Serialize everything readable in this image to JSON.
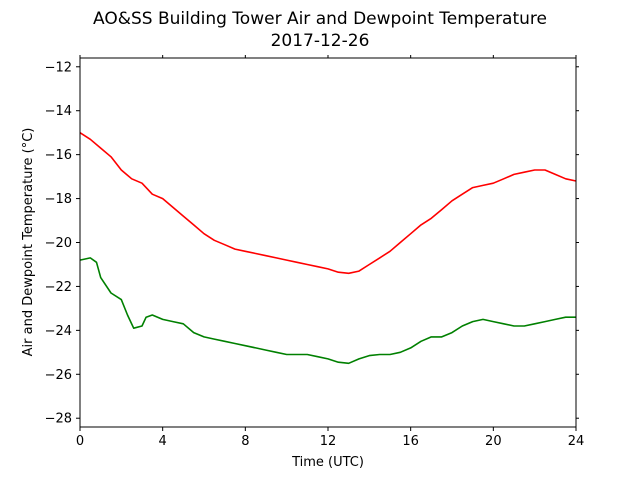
{
  "chart_data": {
    "type": "line",
    "title": "AO&SS Building Tower Air and Dewpoint Temperature",
    "subtitle": "2017-12-26",
    "xlabel": "Time (UTC)",
    "ylabel": "Air and Dewpoint Temperature (°C)",
    "xlim": [
      0,
      24
    ],
    "ylim": [
      -28.4,
      -11.6
    ],
    "xticks": [
      "0",
      "4",
      "8",
      "12",
      "16",
      "20",
      "24"
    ],
    "yticks": [
      "-28",
      "-26",
      "-24",
      "-22",
      "-20",
      "-18",
      "-16",
      "-14",
      "-12"
    ],
    "grid": false,
    "series": [
      {
        "color": "#ff0000",
        "x": [
          0,
          0.5,
          1,
          1.5,
          2,
          2.5,
          3,
          3.5,
          4,
          4.5,
          5,
          5.5,
          6,
          6.5,
          7,
          7.5,
          8,
          8.5,
          9,
          9.5,
          10,
          10.5,
          11,
          11.5,
          12,
          12.5,
          13,
          13.5,
          14,
          14.5,
          15,
          15.5,
          16,
          16.5,
          17,
          17.5,
          18,
          18.5,
          19,
          19.5,
          20,
          20.5,
          21,
          21.5,
          22,
          22.5,
          23,
          23.5,
          24
        ],
        "y": [
          -15.0,
          -15.3,
          -15.7,
          -16.1,
          -16.7,
          -17.1,
          -17.3,
          -17.8,
          -18.0,
          -18.4,
          -18.8,
          -19.2,
          -19.6,
          -19.9,
          -20.1,
          -20.3,
          -20.4,
          -20.5,
          -20.6,
          -20.7,
          -20.8,
          -20.9,
          -21.0,
          -21.1,
          -21.2,
          -21.35,
          -21.4,
          -21.3,
          -21.0,
          -20.7,
          -20.4,
          -20.0,
          -19.6,
          -19.2,
          -18.9,
          -18.5,
          -18.1,
          -17.8,
          -17.5,
          -17.4,
          -17.3,
          -17.1,
          -16.9,
          -16.8,
          -16.7,
          -16.7,
          -16.9,
          -17.1,
          -17.2
        ]
      },
      {
        "color": "#008000",
        "x": [
          0,
          0.5,
          0.8,
          1,
          1.5,
          2,
          2.3,
          2.6,
          3,
          3.2,
          3.5,
          4,
          4.5,
          5,
          5.5,
          6,
          6.5,
          7,
          7.5,
          8,
          8.5,
          9,
          9.5,
          10,
          10.5,
          11,
          11.5,
          12,
          12.5,
          13,
          13.5,
          14,
          14.5,
          15,
          15.5,
          16,
          16.5,
          17,
          17.5,
          18,
          18.5,
          19,
          19.5,
          20,
          20.5,
          21,
          21.5,
          22,
          22.5,
          23,
          23.5,
          24
        ],
        "y": [
          -20.8,
          -20.7,
          -20.9,
          -21.6,
          -22.3,
          -22.6,
          -23.3,
          -23.9,
          -23.8,
          -23.4,
          -23.3,
          -23.5,
          -23.6,
          -23.7,
          -24.1,
          -24.3,
          -24.4,
          -24.5,
          -24.6,
          -24.7,
          -24.8,
          -24.9,
          -25.0,
          -25.1,
          -25.1,
          -25.1,
          -25.2,
          -25.3,
          -25.45,
          -25.5,
          -25.3,
          -25.15,
          -25.1,
          -25.1,
          -25.0,
          -24.8,
          -24.5,
          -24.3,
          -24.3,
          -24.1,
          -23.8,
          -23.6,
          -23.5,
          -23.6,
          -23.7,
          -23.8,
          -23.8,
          -23.7,
          -23.6,
          -23.5,
          -23.4,
          -23.4
        ]
      }
    ]
  }
}
